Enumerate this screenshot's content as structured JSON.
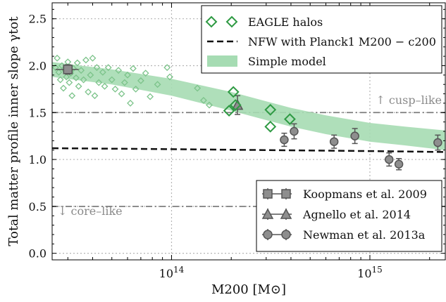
{
  "chart_data": {
    "type": "scatter",
    "xlabel": "M200 [M⊙]",
    "ylabel": "Total matter profile inner slope γtot",
    "xscale": "log",
    "xlim": [
      25000000000000,
      2400000000000000
    ],
    "ylim": [
      -0.07,
      2.67
    ],
    "yticks": [
      "0.0",
      "0.5",
      "1.0",
      "1.5",
      "2.0",
      "2.5"
    ],
    "xticks": [
      {
        "base": "10",
        "exp": "14",
        "value": 100000000000000
      },
      {
        "base": "10",
        "exp": "15",
        "value": 1000000000000000
      }
    ],
    "grid": "dotted",
    "reference_lines": [
      {
        "y": 1.5,
        "label": "↑ cusp–like",
        "style": "dashdot"
      },
      {
        "y": 0.5,
        "label": "↓ core–like",
        "style": "dashdot"
      }
    ],
    "legend_top": {
      "placement": "top-right",
      "entries": [
        {
          "label": "EAGLE halos",
          "marker": "diamond",
          "color": "#2e9a43"
        },
        {
          "label": "NFW with Planck1 M200 − c200",
          "marker": "dashed-line",
          "color": "#111111"
        },
        {
          "label": "Simple model",
          "marker": "band",
          "color": "#a6dcb3"
        }
      ]
    },
    "legend_bottom": {
      "placement": "bottom-right",
      "entries": [
        {
          "label": "Koopmans et al. 2009",
          "marker": "square"
        },
        {
          "label": "Agnello et al. 2014",
          "marker": "triangle"
        },
        {
          "label": "Newman et al. 2013a",
          "marker": "circle"
        }
      ]
    },
    "eagle_small": {
      "color": "#7cc38a",
      "points": [
        [
          26000000000000.0,
          1.98
        ],
        [
          26500000000000.0,
          2.08
        ],
        [
          27000000000000.0,
          1.93
        ],
        [
          27500000000000.0,
          1.85
        ],
        [
          28000000000000.0,
          2.0
        ],
        [
          28500000000000.0,
          1.76
        ],
        [
          29000000000000.0,
          1.95
        ],
        [
          29500000000000.0,
          1.88
        ],
        [
          30000000000000.0,
          2.04
        ],
        [
          30500000000000.0,
          1.82
        ],
        [
          31000000000000.0,
          1.92
        ],
        [
          32000000000000.0,
          1.97
        ],
        [
          33000000000000.0,
          1.87
        ],
        [
          33500000000000.0,
          2.03
        ],
        [
          34000000000000.0,
          1.78
        ],
        [
          35000000000000.0,
          1.95
        ],
        [
          36000000000000.0,
          1.85
        ],
        [
          37000000000000.0,
          2.06
        ],
        [
          38000000000000.0,
          1.72
        ],
        [
          39000000000000.0,
          1.9
        ],
        [
          40000000000000.0,
          2.08
        ],
        [
          41000000000000.0,
          1.68
        ],
        [
          42000000000000.0,
          1.98
        ],
        [
          43000000000000.0,
          1.82
        ],
        [
          45000000000000.0,
          1.93
        ],
        [
          46000000000000.0,
          1.78
        ],
        [
          48000000000000.0,
          1.98
        ],
        [
          50000000000000.0,
          1.85
        ],
        [
          52000000000000.0,
          1.75
        ],
        [
          54000000000000.0,
          1.95
        ],
        [
          56000000000000.0,
          1.7
        ],
        [
          58000000000000.0,
          1.82
        ],
        [
          60000000000000.0,
          1.9
        ],
        [
          62000000000000.0,
          1.6
        ],
        [
          64000000000000.0,
          1.97
        ],
        [
          66000000000000.0,
          1.75
        ],
        [
          70000000000000.0,
          1.84
        ],
        [
          74000000000000.0,
          1.92
        ],
        [
          78000000000000.0,
          1.67
        ],
        [
          85000000000000.0,
          1.8
        ],
        [
          95000000000000.0,
          1.98
        ],
        [
          98000000000000.0,
          1.88
        ],
        [
          135000000000000.0,
          1.76
        ],
        [
          145000000000000.0,
          1.63
        ],
        [
          155000000000000.0,
          1.58
        ],
        [
          22000000000000.0,
          1.8
        ],
        [
          23000000000000.0,
          1.72
        ],
        [
          31500000000000.0,
          1.68
        ]
      ]
    },
    "eagle_large": {
      "color": "#2e9a43",
      "points": [
        [
          195000000000000.0,
          1.52
        ],
        [
          205000000000000.0,
          1.72
        ],
        [
          210000000000000.0,
          1.58
        ],
        [
          315000000000000.0,
          1.53
        ],
        [
          315000000000000.0,
          1.35
        ],
        [
          395000000000000.0,
          1.43
        ]
      ]
    },
    "nfw": {
      "points": [
        [
          25000000000000.0,
          1.12
        ],
        [
          50000000000000.0,
          1.115
        ],
        [
          100000000000000.0,
          1.11
        ],
        [
          300000000000000.0,
          1.1
        ],
        [
          1000000000000000.0,
          1.09
        ],
        [
          2400000000000000.0,
          1.08
        ]
      ]
    },
    "simple_model": {
      "color": "#a6dcb3",
      "upper": [
        [
          25000000000000.0,
          2.04
        ],
        [
          50000000000000.0,
          1.96
        ],
        [
          100000000000000.0,
          1.86
        ],
        [
          200000000000000.0,
          1.72
        ],
        [
          300000000000000.0,
          1.62
        ],
        [
          400000000000000.0,
          1.55
        ],
        [
          600000000000000.0,
          1.47
        ],
        [
          1000000000000000.0,
          1.39
        ],
        [
          1500000000000000.0,
          1.35
        ],
        [
          2400000000000000.0,
          1.31
        ]
      ],
      "lower": [
        [
          25000000000000.0,
          1.88
        ],
        [
          50000000000000.0,
          1.8
        ],
        [
          100000000000000.0,
          1.68
        ],
        [
          200000000000000.0,
          1.52
        ],
        [
          300000000000000.0,
          1.42
        ],
        [
          400000000000000.0,
          1.35
        ],
        [
          600000000000000.0,
          1.27
        ],
        [
          1000000000000000.0,
          1.19
        ],
        [
          1500000000000000.0,
          1.15
        ],
        [
          2400000000000000.0,
          1.1
        ]
      ]
    },
    "koopmans": {
      "points": [
        {
          "x": 30000000000000.0,
          "y": 1.96,
          "xerr": [
            26000000000000.0,
            34000000000000.0
          ],
          "yerr": 0.05
        }
      ]
    },
    "agnello": {
      "points": [
        {
          "x": 215000000000000.0,
          "y": 1.58,
          "yerr": 0.1
        }
      ]
    },
    "newman": {
      "points": [
        {
          "x": 370000000000000.0,
          "y": 1.21,
          "yerr": 0.07
        },
        {
          "x": 415000000000000.0,
          "y": 1.3,
          "yerr": 0.08
        },
        {
          "x": 660000000000000.0,
          "y": 1.19,
          "yerr": 0.07
        },
        {
          "x": 840000000000000.0,
          "y": 1.25,
          "yerr": 0.08
        },
        {
          "x": 1250000000000000.0,
          "y": 1.0,
          "yerr": 0.07
        },
        {
          "x": 1400000000000000.0,
          "y": 0.95,
          "yerr": 0.06
        },
        {
          "x": 2200000000000000.0,
          "y": 1.18,
          "yerr": 0.08
        }
      ]
    }
  }
}
